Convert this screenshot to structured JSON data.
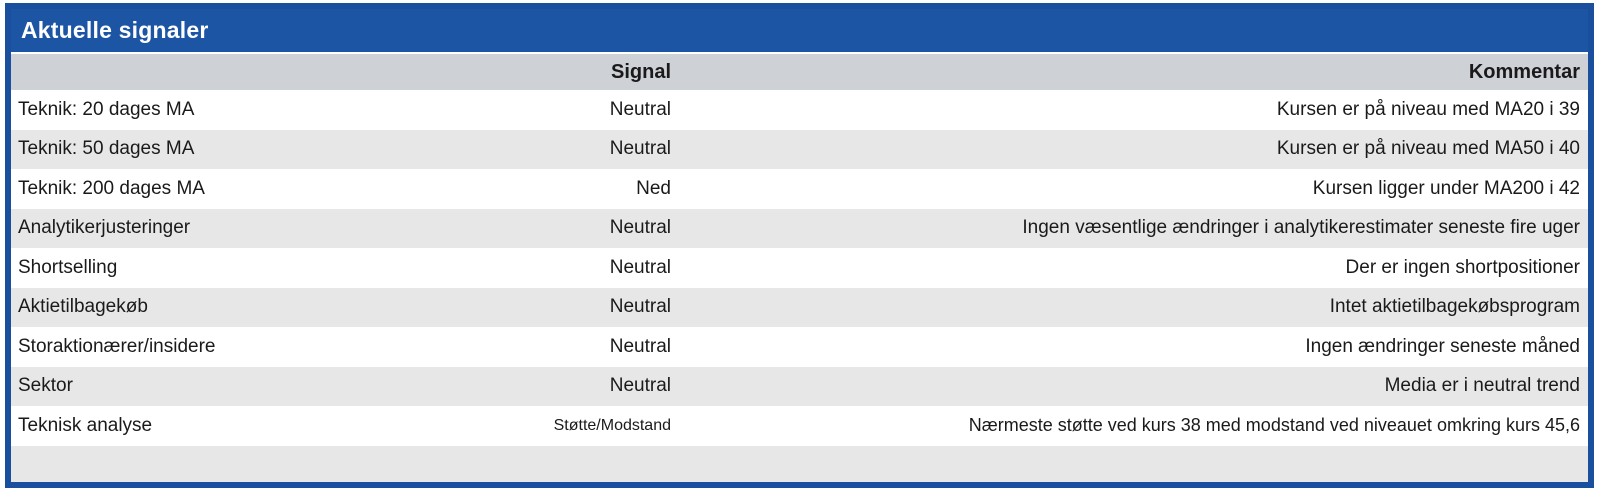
{
  "panel": {
    "title": "Aktuelle signaler",
    "columns": {
      "label": "",
      "signal": "Signal",
      "kommentar": "Kommentar"
    },
    "rows": [
      {
        "label": "Teknik: 20 dages MA",
        "signal": "Neutral",
        "comment": "Kursen er på niveau med MA20 i 39",
        "small": false
      },
      {
        "label": "Teknik: 50 dages MA",
        "signal": "Neutral",
        "comment": "Kursen er på niveau med MA50 i 40",
        "small": false
      },
      {
        "label": "Teknik: 200 dages MA",
        "signal": "Ned",
        "comment": "Kursen ligger under MA200 i 42",
        "small": false
      },
      {
        "label": "Analytikerjusteringer",
        "signal": "Neutral",
        "comment": "Ingen væsentlige ændringer i analytikerestimater seneste fire uger",
        "small": false
      },
      {
        "label": "Shortselling",
        "signal": "Neutral",
        "comment": "Der er ingen shortpositioner",
        "small": false
      },
      {
        "label": "Aktietilbagekøb",
        "signal": "Neutral",
        "comment": "Intet aktietilbagekøbsprogram",
        "small": false
      },
      {
        "label": "Storaktionærer/insidere",
        "signal": "Neutral",
        "comment": "Ingen ændringer seneste måned",
        "small": false
      },
      {
        "label": "Sektor",
        "signal": "Neutral",
        "comment": "Media er i neutral trend",
        "small": false
      },
      {
        "label": "Teknisk analyse",
        "signal": "Støtte/Modstand",
        "comment": "Nærmeste støtte ved kurs 38 med modstand ved niveauet omkring kurs 45,6",
        "small": true
      }
    ],
    "colors": {
      "title_bg": "#1d55a5",
      "border": "#1a4f9e",
      "header_row_bg": "#ced1d6",
      "alt_row_bg": "#e7e7e7",
      "row_bg": "#ffffff",
      "text": "#1a1a1a",
      "title_text": "#ffffff"
    }
  }
}
